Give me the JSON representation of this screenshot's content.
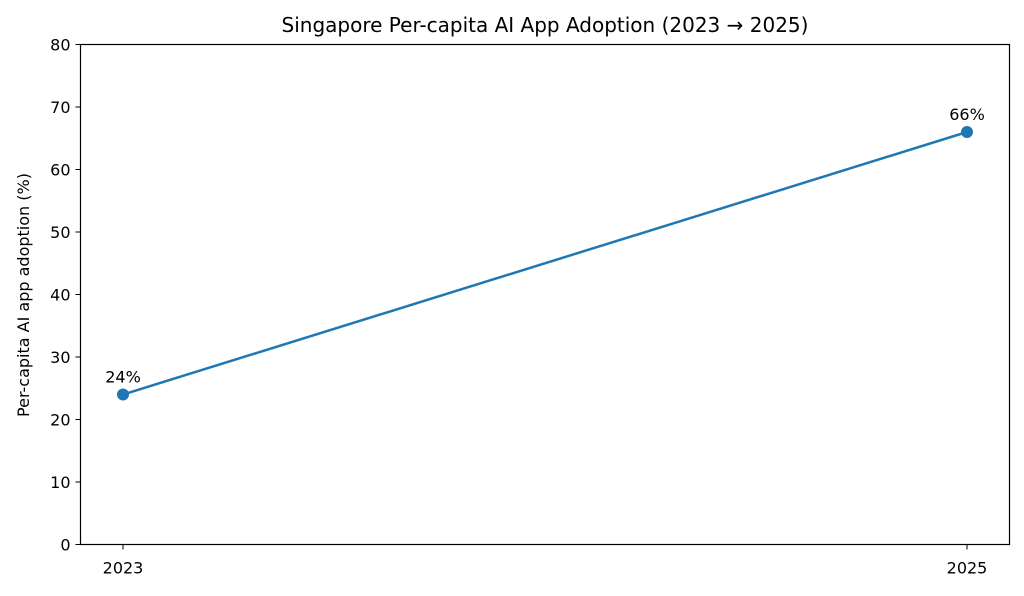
{
  "chart_data": {
    "type": "line",
    "title": "Singapore Per-capita AI App Adoption (2023 → 2025)",
    "xlabel": "",
    "ylabel": "Per-capita AI app adoption (%)",
    "x": [
      "2023",
      "2025"
    ],
    "series": [
      {
        "values": [
          24,
          66
        ],
        "color": "#1f77b4",
        "labels": [
          "24%",
          "66%"
        ]
      }
    ],
    "ylim": [
      0,
      80
    ],
    "yticks": [
      0,
      10,
      20,
      30,
      40,
      50,
      60,
      70,
      80
    ],
    "xticks": [
      "2023",
      "2025"
    ],
    "grid": false,
    "marker": "circle"
  }
}
